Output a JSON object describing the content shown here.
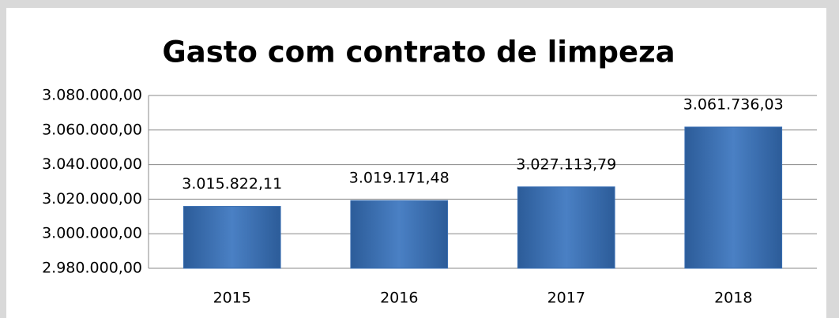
{
  "chart_data": {
    "type": "bar",
    "title": "Gasto com contrato de limpeza",
    "categories": [
      "2015",
      "2016",
      "2017",
      "2018"
    ],
    "values": [
      3015822.11,
      3019171.48,
      3027113.79,
      3061736.03
    ],
    "value_labels": [
      "3.015.822,11",
      "3.019.171,48",
      "3.027.113,79",
      "3.061.736,03"
    ],
    "color": "#3a6fb3",
    "ylim": [
      2980000,
      3080000
    ],
    "yticks": [
      {
        "value": 2980000,
        "label": "2.980.000,00"
      },
      {
        "value": 3000000,
        "label": "3.000.000,00"
      },
      {
        "value": 3020000,
        "label": "3.020.000,00"
      },
      {
        "value": 3040000,
        "label": "3.040.000,00"
      },
      {
        "value": 3060000,
        "label": "3.060.000,00"
      },
      {
        "value": 3080000,
        "label": "3.080.000,00"
      }
    ],
    "grid": true
  }
}
